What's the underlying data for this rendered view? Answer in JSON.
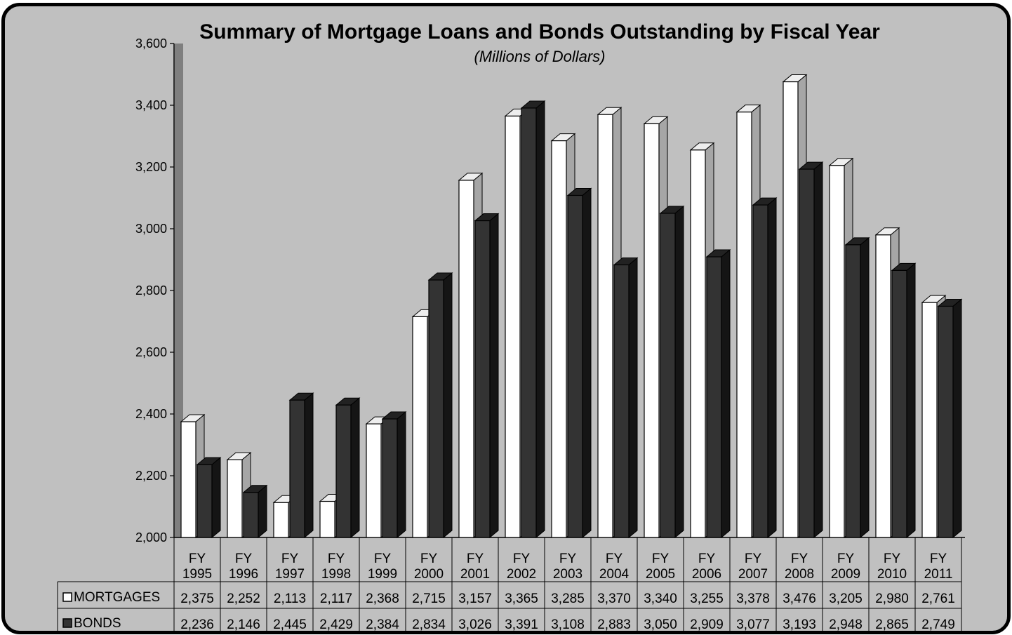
{
  "chart_data": {
    "type": "bar",
    "title": "Summary of Mortgage Loans and Bonds Outstanding by Fiscal Year",
    "subtitle": "(Millions of Dollars)",
    "xlabel": "",
    "ylabel": "",
    "ylim": [
      2000,
      3600
    ],
    "yticks": [
      "2,000",
      "2,200",
      "2,400",
      "2,600",
      "2,800",
      "3,000",
      "3,200",
      "3,400",
      "3,600"
    ],
    "ytick_values": [
      2000,
      2200,
      2400,
      2600,
      2800,
      3000,
      3200,
      3400,
      3600
    ],
    "grid": false,
    "legend": "data-table",
    "categories": [
      [
        "FY",
        "1995"
      ],
      [
        "FY",
        "1996"
      ],
      [
        "FY",
        "1997"
      ],
      [
        "FY",
        "1998"
      ],
      [
        "FY",
        "1999"
      ],
      [
        "FY",
        "2000"
      ],
      [
        "FY",
        "2001"
      ],
      [
        "FY",
        "2002"
      ],
      [
        "FY",
        "2003"
      ],
      [
        "FY",
        "2004"
      ],
      [
        "FY",
        "2005"
      ],
      [
        "FY",
        "2006"
      ],
      [
        "FY",
        "2007"
      ],
      [
        "FY",
        "2008"
      ],
      [
        "FY",
        "2009"
      ],
      [
        "FY",
        "2010"
      ],
      [
        "FY",
        "2011"
      ]
    ],
    "series": [
      {
        "name": "MORTGAGES",
        "color": "#ffffff",
        "values": [
          2375,
          2252,
          2113,
          2117,
          2368,
          2715,
          3157,
          3365,
          3285,
          3370,
          3340,
          3255,
          3378,
          3476,
          3205,
          2980,
          2761
        ],
        "labels": [
          "2,375",
          "2,252",
          "2,113",
          "2,117",
          "2,368",
          "2,715",
          "3,157",
          "3,365",
          "3,285",
          "3,370",
          "3,340",
          "3,255",
          "3,378",
          "3,476",
          "3,205",
          "2,980",
          "2,761"
        ]
      },
      {
        "name": "BONDS",
        "color": "#333333",
        "values": [
          2236,
          2146,
          2445,
          2429,
          2384,
          2834,
          3026,
          3391,
          3108,
          2883,
          3050,
          2909,
          3077,
          3193,
          2948,
          2865,
          2749
        ],
        "labels": [
          "2,236",
          "2,146",
          "2,445",
          "2,429",
          "2,384",
          "2,834",
          "3,026",
          "3,391",
          "3,108",
          "2,883",
          "3,050",
          "2,909",
          "3,077",
          "3,193",
          "2,948",
          "2,865",
          "2,749"
        ]
      }
    ]
  },
  "colors": {
    "background": "#c0c0c0",
    "mortgage_fill": "#ffffff",
    "bond_fill": "#333333",
    "wall": "#7f7f7f"
  }
}
